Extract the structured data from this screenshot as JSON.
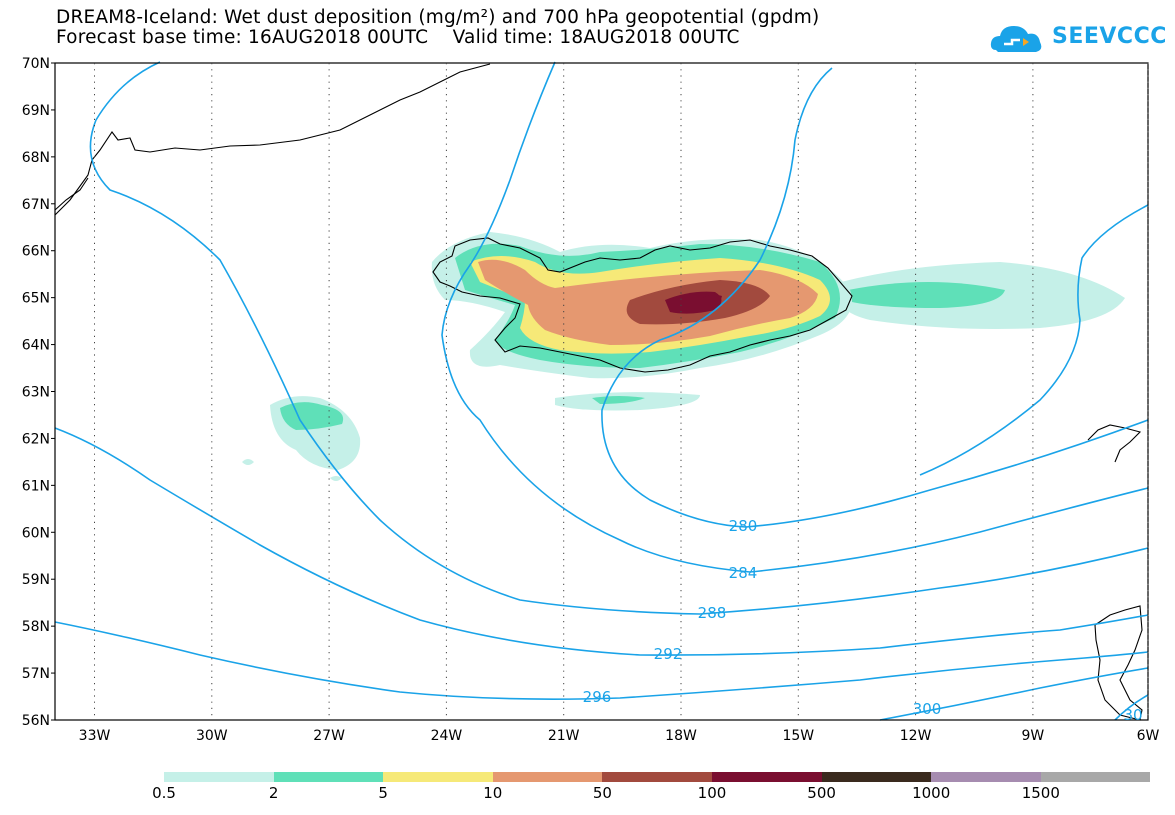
{
  "header": {
    "line1": "DREAM8-Iceland: Wet dust deposition (mg/m²) and 700 hPa geopotential (gpdm)",
    "line2": "Forecast base time: 16AUG2018 00UTC    Valid time: 18AUG2018 00UTC"
  },
  "logo": {
    "text": "SEEVCCC",
    "icon": "cloud-icon",
    "color": "#1aa3e8"
  },
  "map": {
    "lat_labels": [
      "70N",
      "69N",
      "68N",
      "67N",
      "66N",
      "65N",
      "64N",
      "63N",
      "62N",
      "61N",
      "60N",
      "59N",
      "58N",
      "57N",
      "56N"
    ],
    "lon_labels": [
      "33W",
      "30W",
      "27W",
      "24W",
      "21W",
      "18W",
      "15W",
      "12W",
      "9W",
      "6W"
    ],
    "contour_labels": [
      "280",
      "284",
      "288",
      "292",
      "296",
      "300",
      "30"
    ],
    "contour_color": "#1aa3e8"
  },
  "legend": {
    "colors": [
      "#c5f0e8",
      "#5fe0b8",
      "#f6e978",
      "#e59870",
      "#a24a3e",
      "#7a0e30",
      "#3a2a1e",
      "#a68cb0",
      "#a8a8a8"
    ],
    "labels": [
      "0.5",
      "2",
      "5",
      "10",
      "50",
      "100",
      "500",
      "1000",
      "1500"
    ]
  }
}
